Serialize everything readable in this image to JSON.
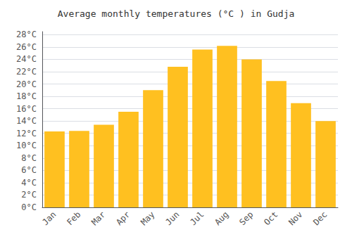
{
  "chart_data": {
    "type": "bar",
    "title": "Average monthly temperatures (°C ) in Gudja",
    "categories": [
      "Jan",
      "Feb",
      "Mar",
      "Apr",
      "May",
      "Jun",
      "Jul",
      "Aug",
      "Sep",
      "Oct",
      "Nov",
      "Dec"
    ],
    "values": [
      12.3,
      12.4,
      13.4,
      15.5,
      19.0,
      22.8,
      25.6,
      26.2,
      24.0,
      20.5,
      16.9,
      14.0
    ],
    "color": "#FFC020",
    "ylim": [
      0,
      28.5
    ],
    "yticks": [
      {
        "value": 0,
        "label": "0°C"
      },
      {
        "value": 2,
        "label": "2°C"
      },
      {
        "value": 4,
        "label": "4°C"
      },
      {
        "value": 6,
        "label": "6°C"
      },
      {
        "value": 8,
        "label": "8°C"
      },
      {
        "value": 10,
        "label": "10°C"
      },
      {
        "value": 12,
        "label": "12°C"
      },
      {
        "value": 14,
        "label": "14°C"
      },
      {
        "value": 16,
        "label": "16°C"
      },
      {
        "value": 18,
        "label": "18°C"
      },
      {
        "value": 20,
        "label": "20°C"
      },
      {
        "value": 22,
        "label": "22°C"
      },
      {
        "value": 24,
        "label": "24°C"
      },
      {
        "value": 26,
        "label": "26°C"
      },
      {
        "value": 28,
        "label": "28°C"
      }
    ],
    "grid": true
  }
}
